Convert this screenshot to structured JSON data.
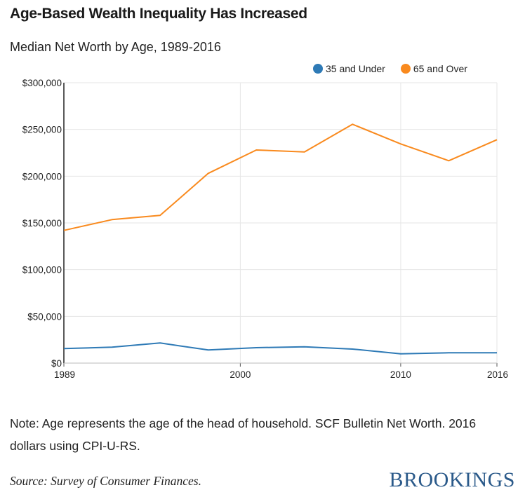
{
  "chart_data": {
    "type": "line",
    "title": "Age-Based Wealth Inequality Has Increased",
    "subtitle": "Median Net Worth by Age, 1989-2016",
    "x": [
      1989,
      1992,
      1995,
      1998,
      2001,
      2004,
      2007,
      2010,
      2013,
      2016
    ],
    "x_ticks": [
      1989,
      2000,
      2010,
      2016
    ],
    "xlim": [
      1989,
      2016
    ],
    "ylim": [
      0,
      300000
    ],
    "y_ticks": [
      0,
      50000,
      100000,
      150000,
      200000,
      250000,
      300000
    ],
    "y_tick_labels": [
      "$0",
      "$50,000",
      "$100,000",
      "$150,000",
      "$200,000",
      "$250,000",
      "$300,000"
    ],
    "grid": true,
    "legend_position": "top-right",
    "series": [
      {
        "name": "35 and Under",
        "color": "#2e7ab6",
        "values": [
          15500,
          17000,
          21500,
          14000,
          16500,
          17500,
          15000,
          10000,
          11000,
          11000
        ]
      },
      {
        "name": "65 and Over",
        "color": "#f98a1e",
        "values": [
          142000,
          153500,
          158000,
          203000,
          228000,
          226000,
          255500,
          234500,
          216500,
          239000
        ]
      }
    ]
  },
  "note": "Note: Age represents the age of the head of household. SCF Bulletin Net Worth. 2016 dollars using CPI-U-RS.",
  "source": "Source: Survey of Consumer Finances.",
  "brand": "BROOKINGS"
}
